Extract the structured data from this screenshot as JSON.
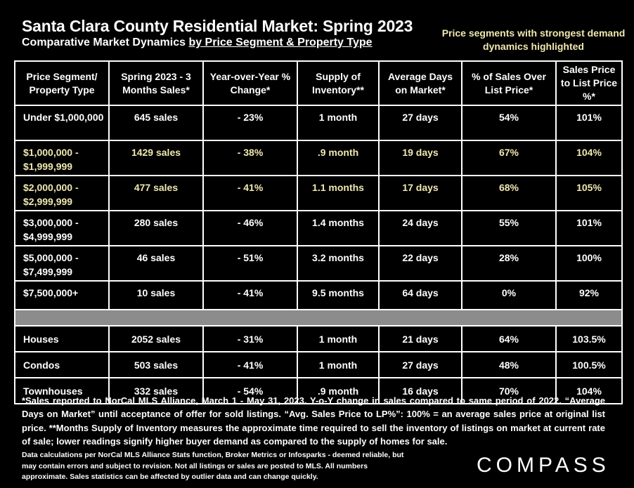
{
  "title": "Santa Clara County Residential Market:  Spring 2023",
  "subtitle_prefix": "Comparative Market Dynamics ",
  "subtitle_underlined": "by Price Segment & Property Type",
  "highlight_note": "Price segments with strongest demand dynamics highlighted",
  "highlight_color": "#f0e8b0",
  "separator_color": "#8c8c8c",
  "chart_data": {
    "type": "table",
    "columns": [
      "Price Segment/ Property Type",
      "Spring 2023 - 3 Months Sales*",
      "Year-over-Year % Change*",
      "Supply of Inventory**",
      "Average Days on Market*",
      "% of Sales Over List Price*",
      "Sales Price to List Price %*"
    ],
    "price_segments": [
      {
        "segment": "Under $1,000,000",
        "sales": "645 sales",
        "yoy": "- 23%",
        "supply": "1 month",
        "dom": "27 days",
        "over_list": "54%",
        "sp_lp": "101%",
        "highlighted": false
      },
      {
        "segment": "$1,000,000 - $1,999,999",
        "sales": "1429 sales",
        "yoy": "- 38%",
        "supply": ".9 month",
        "dom": "19 days",
        "over_list": "67%",
        "sp_lp": "104%",
        "highlighted": true
      },
      {
        "segment": "$2,000,000 - $2,999,999",
        "sales": "477 sales",
        "yoy": "- 41%",
        "supply": "1.1 months",
        "dom": "17 days",
        "over_list": "68%",
        "sp_lp": "105%",
        "highlighted": true
      },
      {
        "segment": "$3,000,000 - $4,999,999",
        "sales": "280 sales",
        "yoy": "- 46%",
        "supply": "1.4 months",
        "dom": "24 days",
        "over_list": "55%",
        "sp_lp": "101%",
        "highlighted": false
      },
      {
        "segment": "$5,000,000 - $7,499,999",
        "sales": "46 sales",
        "yoy": "- 51%",
        "supply": "3.2 months",
        "dom": "22 days",
        "over_list": "28%",
        "sp_lp": "100%",
        "highlighted": false
      },
      {
        "segment": "$7,500,000+",
        "sales": "10 sales",
        "yoy": "- 41%",
        "supply": "9.5 months",
        "dom": "64 days",
        "over_list": "0%",
        "sp_lp": "92%",
        "highlighted": false
      }
    ],
    "property_types": [
      {
        "segment": "Houses",
        "sales": "2052 sales",
        "yoy": "- 31%",
        "supply": "1 month",
        "dom": "21 days",
        "over_list": "64%",
        "sp_lp": "103.5%"
      },
      {
        "segment": "Condos",
        "sales": "503 sales",
        "yoy": "- 41%",
        "supply": "1 month",
        "dom": "27 days",
        "over_list": "48%",
        "sp_lp": "100.5%"
      },
      {
        "segment": "Townhouses",
        "sales": "332 sales",
        "yoy": "- 54%",
        "supply": ".9 month",
        "dom": "16 days",
        "over_list": "70%",
        "sp_lp": "104%"
      }
    ]
  },
  "footnote": "*Sales reported to NorCal MLS Alliance, March 1 - May 31, 2023. Y-o-Y change in sales compared to same period of 2022. “Average Days on Market” until acceptance of offer for sold listings. “Avg. Sales Price to LP%”: 100% = an average sales price at original list price. **Months Supply of Inventory measures the approximate time required to sell the inventory of listings on market at current rate of sale; lower readings signify higher buyer demand as compared to the supply of homes for sale.",
  "disclaimer": "Data calculations per NorCal MLS Alliance Stats function, Broker Metrics or Infosparks - deemed reliable, but may contain errors and subject to revision.  Not all listings or sales are posted to MLS. All numbers approximate. Sales statistics can be affected by outlier data and can change quickly.",
  "logo": "COMPASS"
}
